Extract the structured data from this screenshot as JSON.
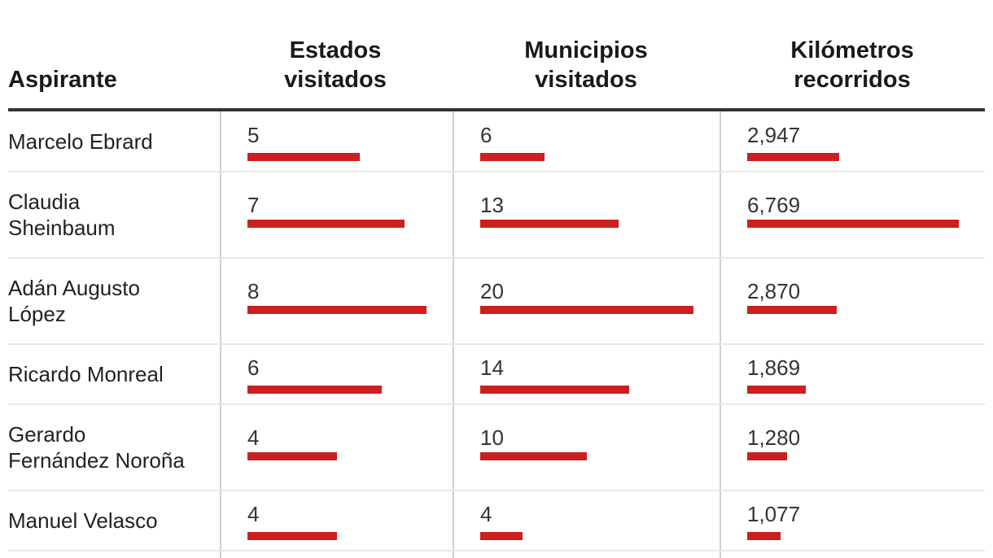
{
  "header": {
    "aspirante": "Aspirante",
    "estados": "Estados\nvisitados",
    "municipios": "Municipios\nvisitados",
    "kilometros": "Kilómetros\nrecorridos"
  },
  "colors": {
    "bar": "#cc1f1f"
  },
  "chart_data": {
    "type": "table",
    "columns": [
      "Aspirante",
      "Estados visitados",
      "Municipios visitados",
      "Kilómetros recorridos"
    ],
    "rows": [
      {
        "name": "Marcelo Ebrard",
        "estados": 5,
        "municipios": 6,
        "km": 2947,
        "estados_label": "5",
        "municipios_label": "6",
        "km_label": "2,947"
      },
      {
        "name": "Claudia\nSheinbaum",
        "estados": 7,
        "municipios": 13,
        "km": 6769,
        "estados_label": "7",
        "municipios_label": "13",
        "km_label": "6,769"
      },
      {
        "name": "Adán Augusto\nLópez",
        "estados": 8,
        "municipios": 20,
        "km": 2870,
        "estados_label": "8",
        "municipios_label": "20",
        "km_label": "2,870"
      },
      {
        "name": "Ricardo Monreal",
        "estados": 6,
        "municipios": 14,
        "km": 1869,
        "estados_label": "6",
        "municipios_label": "14",
        "km_label": "1,869"
      },
      {
        "name": "Gerardo\nFernández Noroña",
        "estados": 4,
        "municipios": 10,
        "km": 1280,
        "estados_label": "4",
        "municipios_label": "10",
        "km_label": "1,280"
      },
      {
        "name": "Manuel Velasco",
        "estados": 4,
        "municipios": 4,
        "km": 1077,
        "estados_label": "4",
        "municipios_label": "4",
        "km_label": "1,077"
      }
    ]
  }
}
